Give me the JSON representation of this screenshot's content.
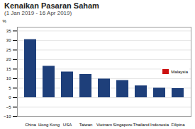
{
  "chart_data": {
    "type": "bar",
    "title": "Kenaikan Pasaran Saham",
    "subtitle": "(1 Jan 2019 - 16 Apr 2019)",
    "categories": [
      "China",
      "Hong Kong",
      "USA",
      "Taiwan",
      "Vietnam",
      "Singapore",
      "Thailand",
      "Indonesia",
      "Filipina"
    ],
    "series": [
      {
        "color": "#1e3f7a",
        "values": [
          30.5,
          16.5,
          13.5,
          12.2,
          9.8,
          9.0,
          6.2,
          5.0,
          4.8
        ]
      },
      {
        "name": "Malaysia",
        "color": "#cc1111",
        "values": [
          null,
          null,
          null,
          null,
          null,
          null,
          null,
          null,
          null
        ]
      }
    ],
    "ylabel": "%",
    "ylim": [
      -10,
      37
    ],
    "yticks": [
      -10,
      -5,
      0,
      5,
      10,
      15,
      20,
      25,
      30,
      35
    ],
    "grid": true,
    "legend": "right"
  }
}
